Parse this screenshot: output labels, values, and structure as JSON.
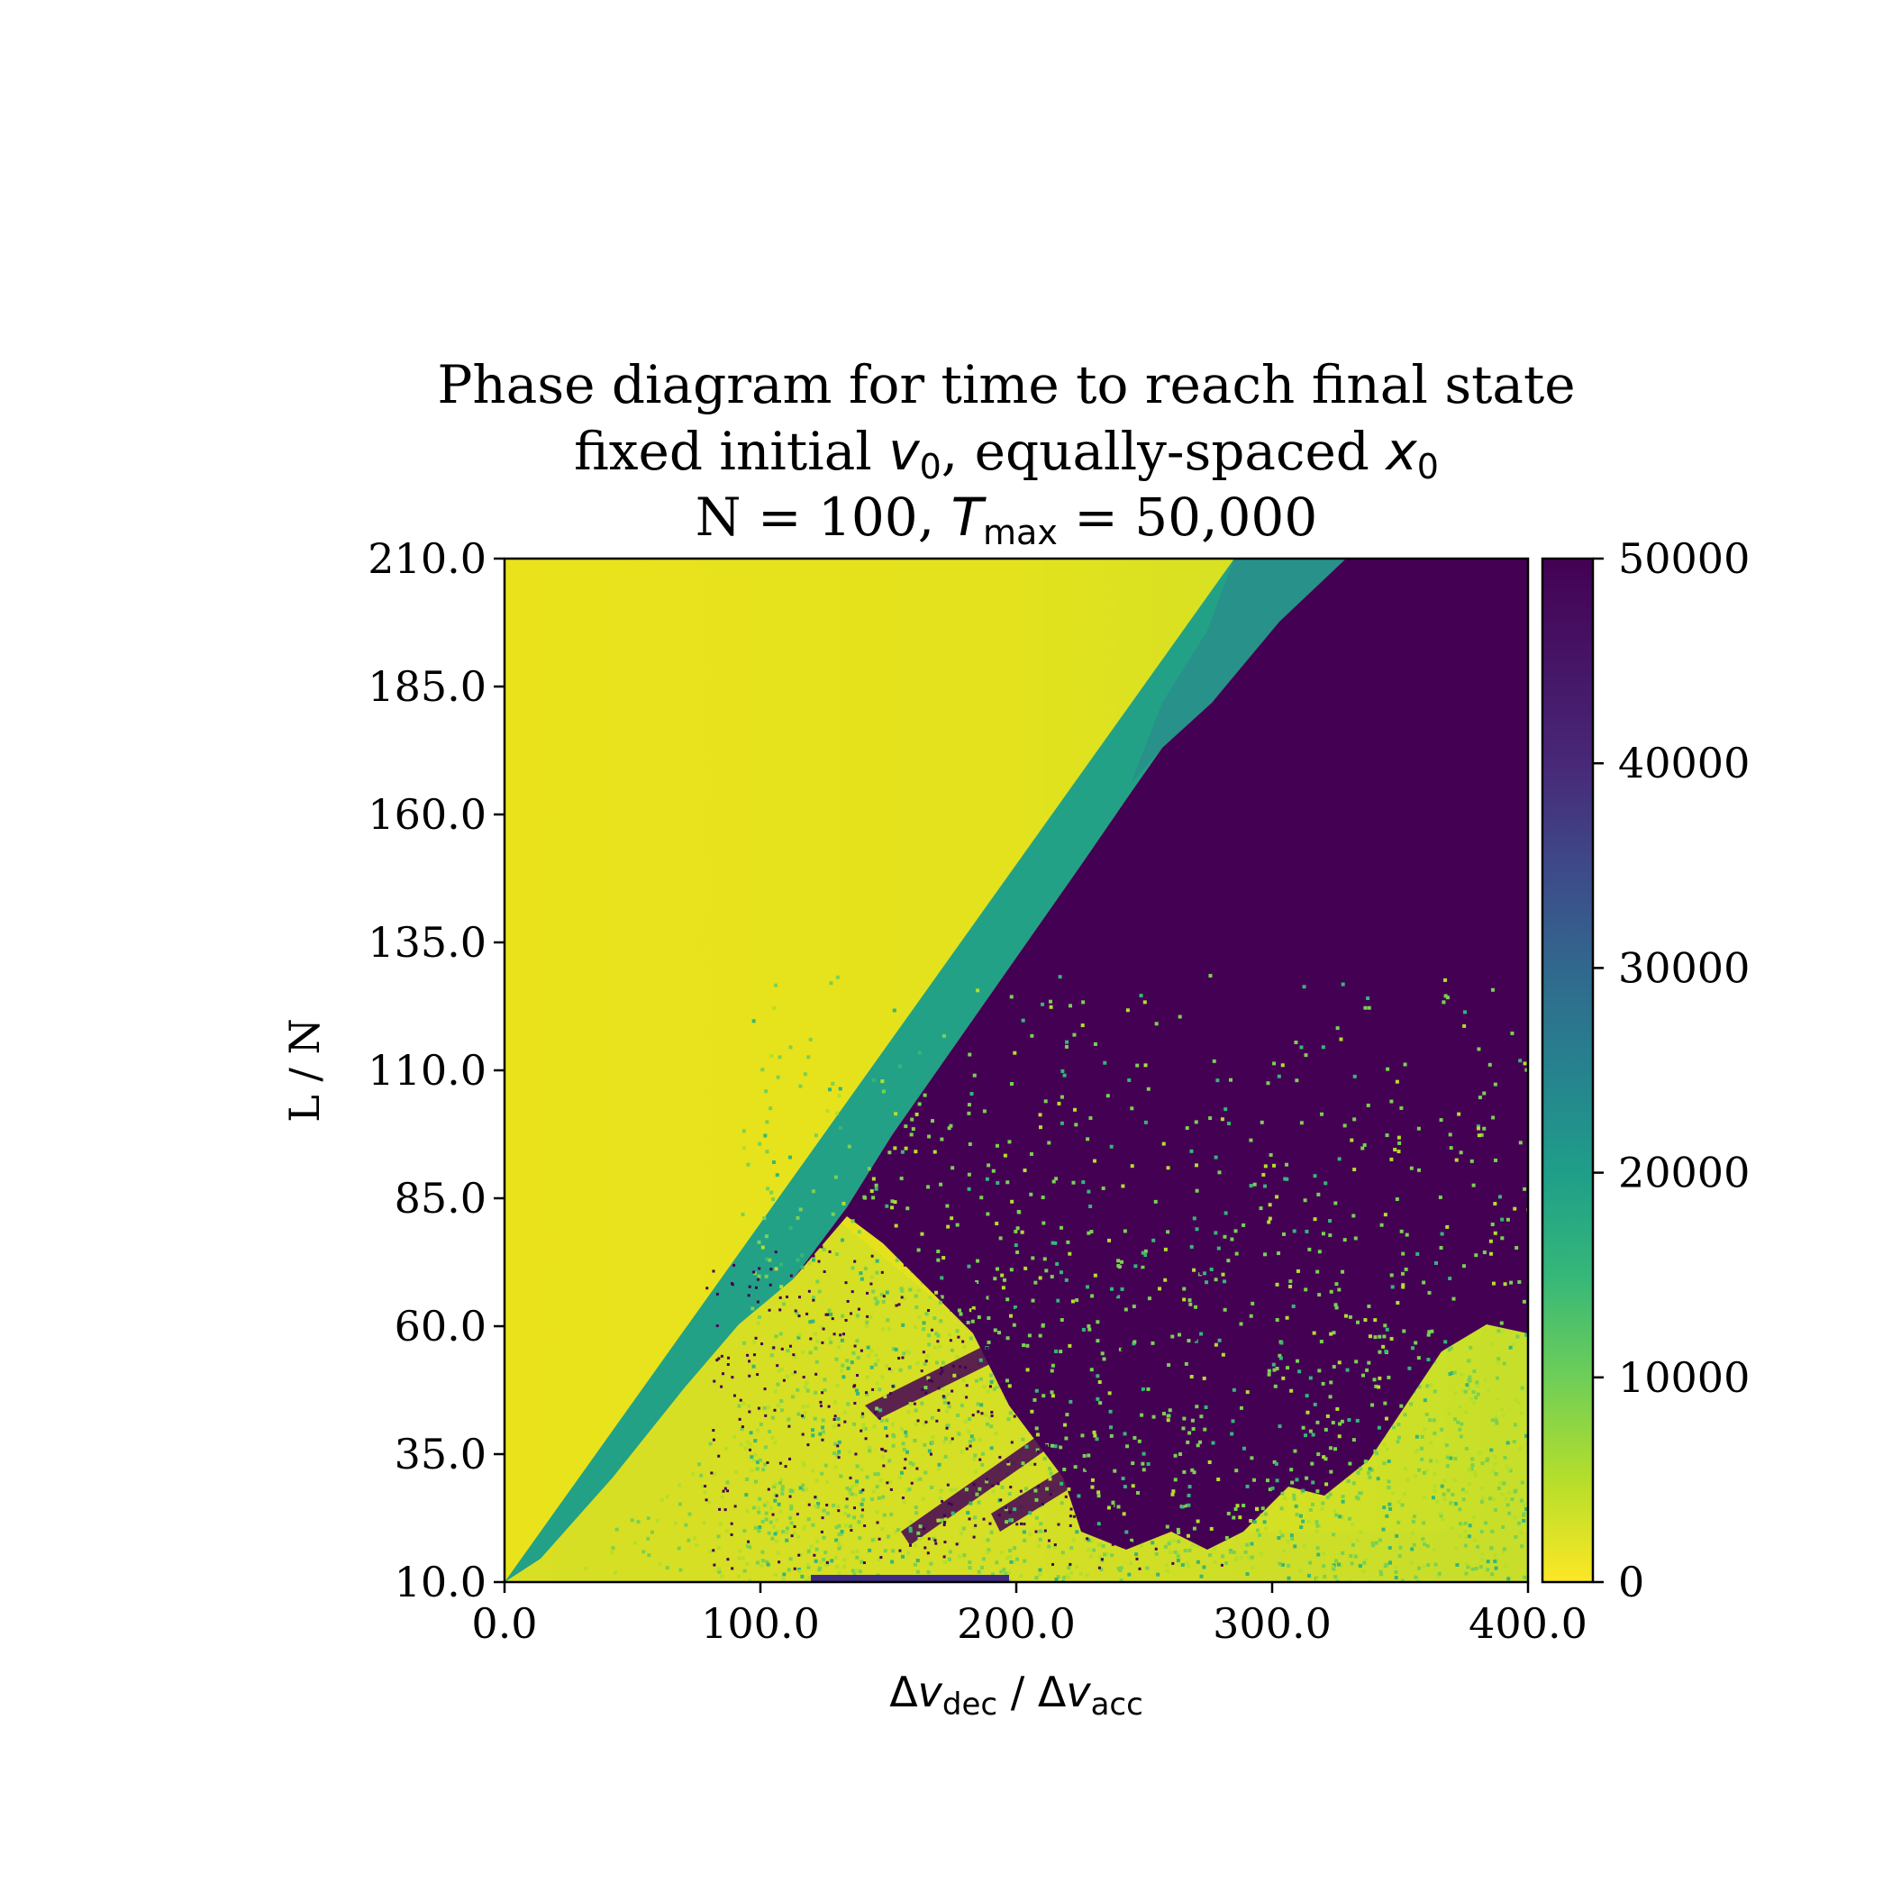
{
  "chart_data": {
    "type": "heatmap",
    "title": {
      "line1": "Phase diagram for time to reach final state",
      "line2_pre": "fixed initial ",
      "line2_var1": "v",
      "line2_sub1": "0",
      "line2_mid": ", equally-spaced ",
      "line2_var2": "x",
      "line2_sub2": "0",
      "line3_pre": "N = 100, ",
      "line3_var": "T",
      "line3_sub": "max",
      "line3_post": " = 50,000"
    },
    "xlabel": {
      "pre": "Δ",
      "var1": "v",
      "sub1": "dec",
      "mid": " / Δ",
      "var2": "v",
      "sub2": "acc"
    },
    "ylabel": "L / N",
    "xlim": [
      0,
      400
    ],
    "ylim": [
      10,
      210
    ],
    "xticks": [
      "0.0",
      "100.0",
      "200.0",
      "300.0",
      "400.0"
    ],
    "yticks": [
      "10.0",
      "35.0",
      "60.0",
      "85.0",
      "110.0",
      "135.0",
      "160.0",
      "185.0",
      "210.0"
    ],
    "colorbar": {
      "min": 0,
      "max": 50000,
      "ticks": [
        "0",
        "10000",
        "20000",
        "30000",
        "40000",
        "50000"
      ],
      "colormap": "viridis_r"
    },
    "regions": [
      {
        "description_level": "low",
        "value_approx": 3000
      },
      {
        "description_level": "band",
        "value_approx": 24000
      },
      {
        "description_level": "max",
        "value_approx": 50000
      }
    ]
  },
  "colors": {
    "yellow": "#e6e21a",
    "green_yellow": "#bfdc2f",
    "teal_band": "#22a187",
    "teal_band_upper": "#2a8a8b",
    "purple": "#440154",
    "green": "#7ad151"
  }
}
